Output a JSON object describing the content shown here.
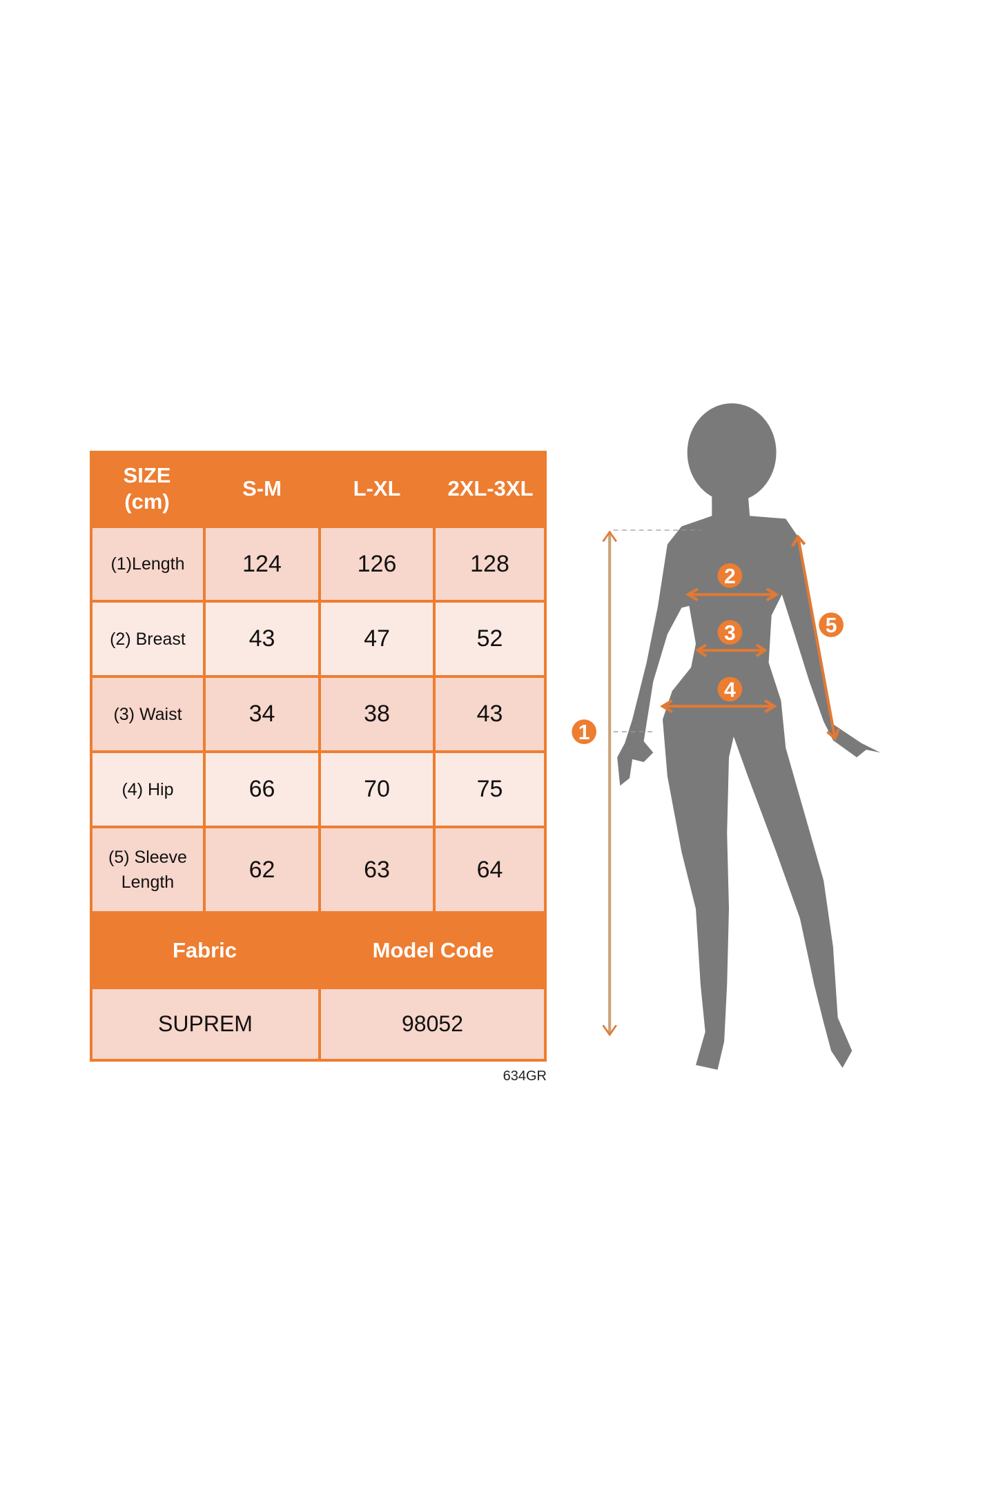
{
  "table": {
    "header": {
      "corner": "SIZE\n(cm)",
      "sizes": [
        "S-M",
        "L-XL",
        "2XL-3XL"
      ]
    },
    "rows": [
      {
        "label": "(1)Length",
        "values": [
          "124",
          "126",
          "128"
        ]
      },
      {
        "label": "(2) Breast",
        "values": [
          "43",
          "47",
          "52"
        ]
      },
      {
        "label": "(3) Waist",
        "values": [
          "34",
          "38",
          "43"
        ]
      },
      {
        "label": "(4) Hip",
        "values": [
          "66",
          "70",
          "75"
        ]
      },
      {
        "label": "(5) Sleeve\nLength",
        "values": [
          "62",
          "63",
          "64"
        ]
      }
    ],
    "footer_headers": {
      "fabric": "Fabric",
      "model_code": "Model Code"
    },
    "footer_values": {
      "fabric": "SUPREM",
      "model_code": "98052"
    }
  },
  "code_note": "634GR",
  "figure": {
    "markers": [
      "1",
      "2",
      "3",
      "4",
      "5"
    ]
  },
  "colors": {
    "accent": "#ED7D31",
    "cell_dark": "#F7D6CB",
    "cell_light": "#FBEAE4",
    "silhouette": "#7A7A7A"
  }
}
